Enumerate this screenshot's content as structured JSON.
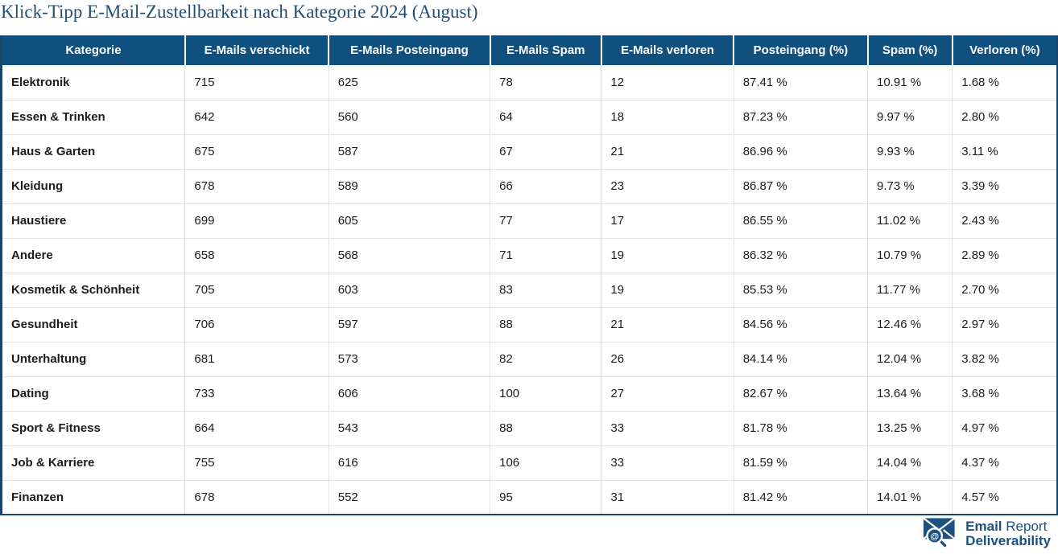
{
  "page": {
    "title": "Klick-Tipp E-Mail-Zustellbarkeit nach Kategorie 2024 (August)"
  },
  "colors": {
    "header_bg": "#10507e",
    "title_color": "#1f4e79",
    "border_blue": "#17456e",
    "logo_blue": "#1b5180",
    "grid_line": "#e3e3e3",
    "cell_text": "#1c1c1c"
  },
  "chart_data": {
    "type": "table",
    "title": "Klick-Tipp E-Mail-Zustellbarkeit nach Kategorie 2024 (August)",
    "columns": [
      "Kategorie",
      "E-Mails verschickt",
      "E-Mails Posteingang",
      "E-Mails Spam",
      "E-Mails verloren",
      "Posteingang (%)",
      "Spam (%)",
      "Verloren (%)"
    ],
    "rows": [
      [
        "Elektronik",
        "715",
        "625",
        "78",
        "12",
        "87.41 %",
        "10.91 %",
        "1.68 %"
      ],
      [
        "Essen & Trinken",
        "642",
        "560",
        "64",
        "18",
        "87.23 %",
        "9.97 %",
        "2.80 %"
      ],
      [
        "Haus & Garten",
        "675",
        "587",
        "67",
        "21",
        "86.96 %",
        "9.93 %",
        "3.11 %"
      ],
      [
        "Kleidung",
        "678",
        "589",
        "66",
        "23",
        "86.87 %",
        "9.73 %",
        "3.39 %"
      ],
      [
        "Haustiere",
        "699",
        "605",
        "77",
        "17",
        "86.55 %",
        "11.02 %",
        "2.43 %"
      ],
      [
        "Andere",
        "658",
        "568",
        "71",
        "19",
        "86.32 %",
        "10.79 %",
        "2.89 %"
      ],
      [
        "Kosmetik & Schönheit",
        "705",
        "603",
        "83",
        "19",
        "85.53 %",
        "11.77 %",
        "2.70 %"
      ],
      [
        "Gesundheit",
        "706",
        "597",
        "88",
        "21",
        "84.56 %",
        "12.46 %",
        "2.97 %"
      ],
      [
        "Unterhaltung",
        "681",
        "573",
        "82",
        "26",
        "84.14 %",
        "12.04 %",
        "3.82 %"
      ],
      [
        "Dating",
        "733",
        "606",
        "100",
        "27",
        "82.67 %",
        "13.64 %",
        "3.68 %"
      ],
      [
        "Sport & Fitness",
        "664",
        "543",
        "88",
        "33",
        "81.78 %",
        "13.25 %",
        "4.97 %"
      ],
      [
        "Job & Karriere",
        "755",
        "616",
        "106",
        "33",
        "81.59 %",
        "14.04 %",
        "4.37 %"
      ],
      [
        "Finanzen",
        "678",
        "552",
        "95",
        "31",
        "81.42 %",
        "14.01 %",
        "4.57 %"
      ]
    ]
  },
  "logo": {
    "line1_bold": "Email",
    "line1_regular": "Report",
    "line2_bold": "Deliverability",
    "icon": "envelope-magnifier-at-icon"
  }
}
